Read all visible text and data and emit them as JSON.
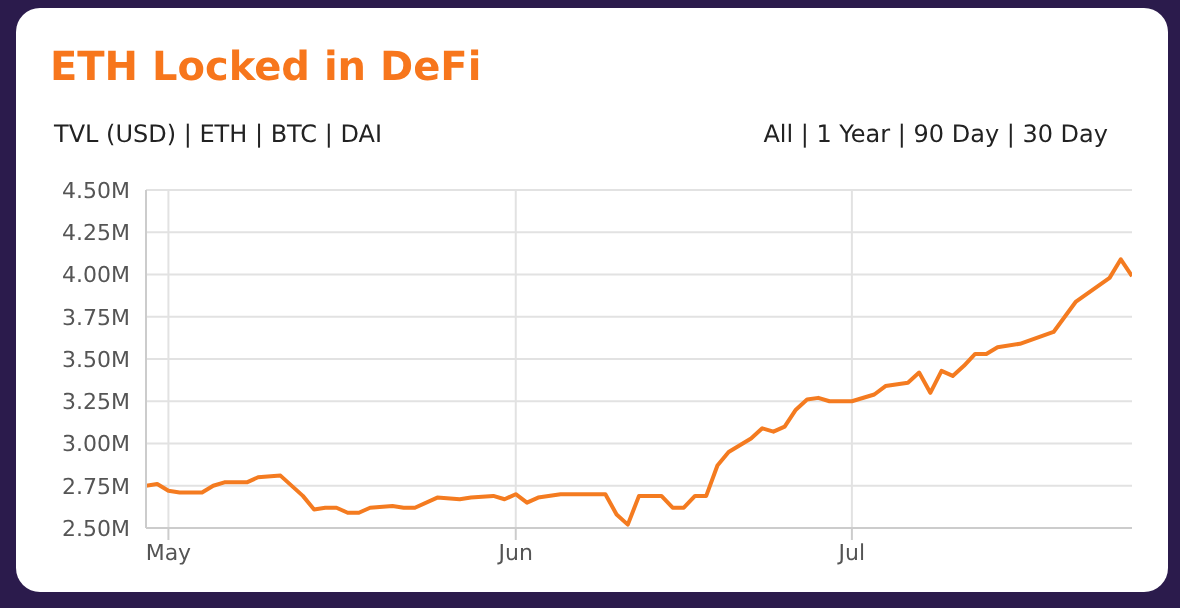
{
  "chart_data": {
    "type": "line",
    "title": "ETH Locked in DeFi",
    "annotations": [
      "TVL (USD) | ETH | BTC | DAI",
      "All | 1 Year | 90 Day | 30 Day"
    ],
    "x": [
      "--04-29",
      "--04-30",
      "--05-01",
      "--05-02",
      "--05-04",
      "--05-05",
      "--05-06",
      "--05-08",
      "--05-09",
      "--05-11",
      "--05-13",
      "--05-14",
      "--05-15",
      "--05-16",
      "--05-17",
      "--05-18",
      "--05-19",
      "--05-21",
      "--05-22",
      "--05-23",
      "--05-25",
      "--05-27",
      "--05-28",
      "--05-30",
      "--05-31",
      "--06-01",
      "--06-02",
      "--06-03",
      "--06-05",
      "--06-07",
      "--06-09",
      "--06-10",
      "--06-11",
      "--06-12",
      "--06-14",
      "--06-15",
      "--06-16",
      "--06-17",
      "--06-18",
      "--06-19",
      "--06-20",
      "--06-22",
      "--06-23",
      "--06-24",
      "--06-25",
      "--06-26",
      "--06-27",
      "--06-28",
      "--06-29",
      "--07-01",
      "--07-03",
      "--07-04",
      "--07-06",
      "--07-07",
      "--07-08",
      "--07-09",
      "--07-10",
      "--07-11",
      "--07-12",
      "--07-13",
      "--07-14",
      "--07-16",
      "--07-19",
      "--07-20",
      "--07-21",
      "--07-24",
      "--07-25",
      "--07-26"
    ],
    "series": [
      {
        "color": "#f47b20",
        "values": [
          2.75,
          2.76,
          2.72,
          2.71,
          2.71,
          2.75,
          2.77,
          2.77,
          2.8,
          2.81,
          2.69,
          2.61,
          2.62,
          2.62,
          2.59,
          2.59,
          2.62,
          2.63,
          2.62,
          2.62,
          2.68,
          2.67,
          2.68,
          2.69,
          2.67,
          2.7,
          2.65,
          2.68,
          2.7,
          2.7,
          2.7,
          2.58,
          2.52,
          2.69,
          2.69,
          2.62,
          2.62,
          2.69,
          2.69,
          2.87,
          2.95,
          3.03,
          3.09,
          3.07,
          3.1,
          3.2,
          3.26,
          3.27,
          3.25,
          3.25,
          3.29,
          3.34,
          3.36,
          3.42,
          3.3,
          3.43,
          3.4,
          3.46,
          3.53,
          3.53,
          3.57,
          3.59,
          3.66,
          3.75,
          3.84,
          3.98,
          4.09,
          3.99
        ]
      }
    ],
    "xlim": [
      "--04-29",
      "--07-26"
    ],
    "xticks": [
      {
        "value": "--05-01",
        "label": "May"
      },
      {
        "value": "--06-01",
        "label": "Jun"
      },
      {
        "value": "--07-01",
        "label": "Jul"
      }
    ],
    "ylim": [
      2.5,
      4.5
    ],
    "yticks": [
      {
        "value": 2.5,
        "label": "2.50M"
      },
      {
        "value": 2.75,
        "label": "2.75M"
      },
      {
        "value": 3.0,
        "label": "3.00M"
      },
      {
        "value": 3.25,
        "label": "3.25M"
      },
      {
        "value": 3.5,
        "label": "3.50M"
      },
      {
        "value": 3.75,
        "label": "3.75M"
      },
      {
        "value": 4.0,
        "label": "4.00M"
      },
      {
        "value": 4.25,
        "label": "4.25M"
      },
      {
        "value": 4.5,
        "label": "4.50M"
      }
    ],
    "grid": true,
    "legend": false,
    "marker": "none",
    "line_style": "solid"
  }
}
